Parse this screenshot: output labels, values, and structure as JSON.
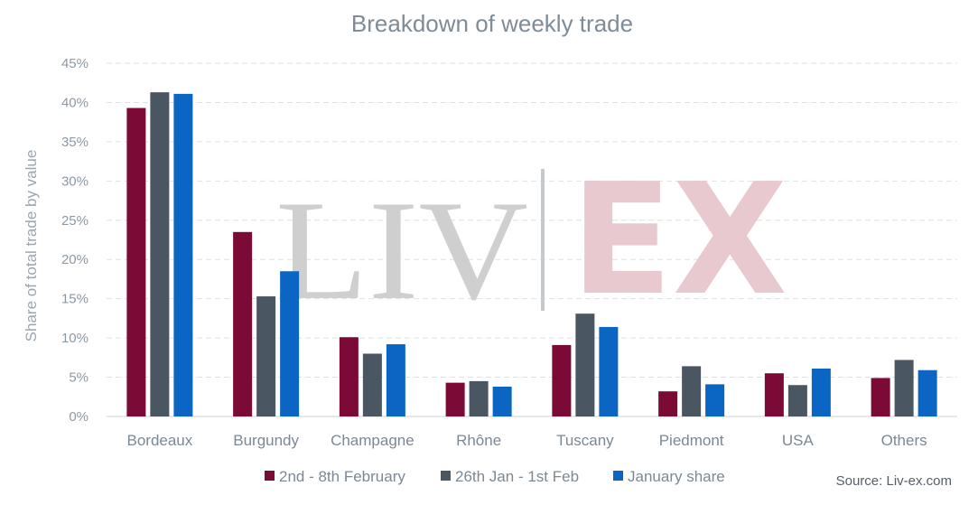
{
  "chart_data": {
    "type": "bar",
    "title": "Breakdown of weekly trade",
    "xlabel": "",
    "ylabel": "Share of total trade by value",
    "ylim": [
      0,
      45
    ],
    "yticks": [
      0,
      5,
      10,
      15,
      20,
      25,
      30,
      35,
      40,
      45
    ],
    "ytick_labels": [
      "0%",
      "5%",
      "10%",
      "15%",
      "20%",
      "25%",
      "30%",
      "35%",
      "40%",
      "45%"
    ],
    "grid": true,
    "legend_position": "bottom",
    "categories": [
      "Bordeaux",
      "Burgundy",
      "Champagne",
      "Rhône",
      "Tuscany",
      "Piedmont",
      "USA",
      "Others"
    ],
    "series": [
      {
        "name": "2nd - 8th February",
        "color": "#7b0a36",
        "values": [
          39.3,
          23.5,
          10.1,
          4.3,
          9.1,
          3.2,
          5.5,
          4.9
        ]
      },
      {
        "name": "26th Jan -  1st Feb",
        "color": "#4a5661",
        "values": [
          41.3,
          15.3,
          8.0,
          4.5,
          13.1,
          6.4,
          4.0,
          7.2
        ]
      },
      {
        "name": "January share",
        "color": "#0b66c3",
        "values": [
          41.1,
          18.5,
          9.2,
          3.8,
          11.4,
          4.1,
          6.1,
          5.9
        ]
      }
    ]
  },
  "watermark": {
    "left": "LIV",
    "right": "EX"
  },
  "source": "Source: Liv-ex.com"
}
